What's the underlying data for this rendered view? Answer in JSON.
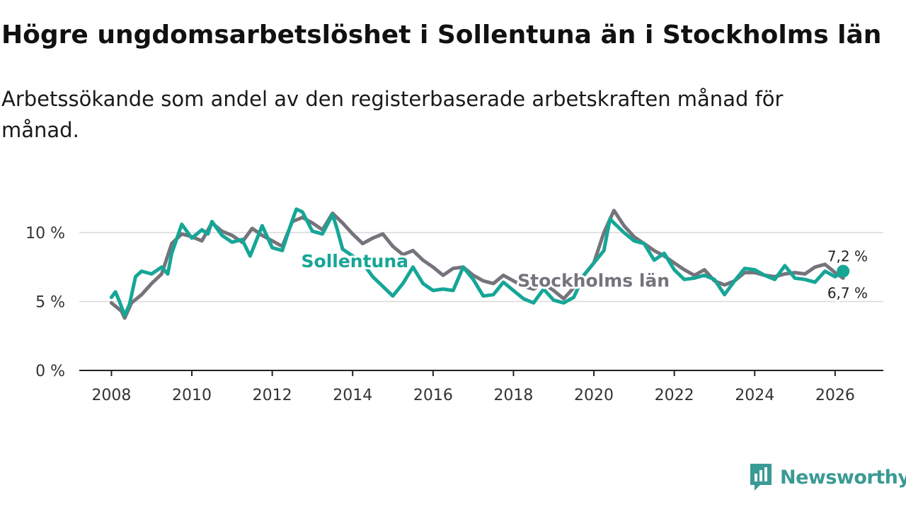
{
  "title": "Högre ungdomsarbetslöshet i Sollentuna än i Stockholms län",
  "subtitle": "Arbetssökande som andel av den registerbaserade arbetskraften månad för månad.",
  "brand": {
    "name": "Newsworthy",
    "icon": "newsworthy-logo-icon"
  },
  "colors": {
    "sollentuna": "#16a697",
    "stockholm": "#76737b",
    "grid": "#d9d9d9",
    "axis": "#222222"
  },
  "chart_data": {
    "type": "line",
    "title": "Högre ungdomsarbetslöshet i Sollentuna än i Stockholms län",
    "xlabel": "",
    "ylabel": "",
    "xlim": [
      2007.2,
      2027.2
    ],
    "ylim": [
      0,
      12
    ],
    "x_ticks": [
      2008,
      2010,
      2012,
      2014,
      2016,
      2018,
      2020,
      2022,
      2024,
      2026
    ],
    "x_tick_labels": [
      "2008",
      "2010",
      "2012",
      "2014",
      "2016",
      "2018",
      "2020",
      "2022",
      "2024",
      "2026"
    ],
    "y_ticks": [
      0,
      5,
      10
    ],
    "y_tick_labels": [
      "0 %",
      "5 %",
      "10 %"
    ],
    "grid": true,
    "series": [
      {
        "name": "Stockholms län",
        "label": "Stockholms län",
        "end_label": "6,7 %",
        "x": [
          2008.0,
          2008.25,
          2008.33,
          2008.5,
          2008.75,
          2009.0,
          2009.25,
          2009.5,
          2009.75,
          2010.0,
          2010.25,
          2010.5,
          2010.75,
          2011.0,
          2011.25,
          2011.5,
          2011.75,
          2012.0,
          2012.25,
          2012.5,
          2012.75,
          2013.0,
          2013.25,
          2013.5,
          2013.75,
          2014.0,
          2014.25,
          2014.5,
          2014.75,
          2015.0,
          2015.25,
          2015.5,
          2015.75,
          2016.0,
          2016.25,
          2016.5,
          2016.75,
          2017.0,
          2017.25,
          2017.5,
          2017.75,
          2018.0,
          2018.25,
          2018.5,
          2018.75,
          2019.0,
          2019.25,
          2019.5,
          2019.75,
          2020.0,
          2020.25,
          2020.5,
          2020.75,
          2021.0,
          2021.25,
          2021.5,
          2021.75,
          2022.0,
          2022.25,
          2022.5,
          2022.75,
          2023.0,
          2023.25,
          2023.5,
          2023.75,
          2024.0,
          2024.25,
          2024.5,
          2024.75,
          2025.0,
          2025.25,
          2025.5,
          2025.75,
          2026.0,
          2026.2
        ],
        "values": [
          4.9,
          4.3,
          3.8,
          4.9,
          5.5,
          6.3,
          7.0,
          9.2,
          9.9,
          9.7,
          9.4,
          10.7,
          10.1,
          9.8,
          9.3,
          10.3,
          9.8,
          9.4,
          9.0,
          10.8,
          11.1,
          10.7,
          10.2,
          11.4,
          10.7,
          9.9,
          9.2,
          9.6,
          9.9,
          9.0,
          8.4,
          8.7,
          8.0,
          7.5,
          6.9,
          7.4,
          7.5,
          6.9,
          6.5,
          6.3,
          6.9,
          6.5,
          6.1,
          5.9,
          6.3,
          5.8,
          5.2,
          6.0,
          6.9,
          7.8,
          10.0,
          11.6,
          10.5,
          9.7,
          9.2,
          8.7,
          8.3,
          7.8,
          7.3,
          6.9,
          7.3,
          6.5,
          6.2,
          6.5,
          7.1,
          7.1,
          6.9,
          6.8,
          7.0,
          7.1,
          7.0,
          7.5,
          7.7,
          7.1,
          6.7
        ]
      },
      {
        "name": "Sollentuna",
        "label": "Sollentuna",
        "end_label": "7,2 %",
        "x": [
          2008.0,
          2008.1,
          2008.2,
          2008.33,
          2008.45,
          2008.6,
          2008.75,
          2009.0,
          2009.25,
          2009.4,
          2009.5,
          2009.75,
          2010.0,
          2010.25,
          2010.4,
          2010.5,
          2010.75,
          2011.0,
          2011.25,
          2011.45,
          2011.75,
          2012.0,
          2012.25,
          2012.5,
          2012.6,
          2012.75,
          2013.0,
          2013.25,
          2013.5,
          2013.6,
          2013.75,
          2014.0,
          2014.25,
          2014.5,
          2014.75,
          2015.0,
          2015.25,
          2015.5,
          2015.75,
          2016.0,
          2016.25,
          2016.5,
          2016.75,
          2017.0,
          2017.25,
          2017.5,
          2017.75,
          2018.0,
          2018.25,
          2018.5,
          2018.75,
          2019.0,
          2019.25,
          2019.5,
          2019.75,
          2020.0,
          2020.25,
          2020.4,
          2020.5,
          2020.75,
          2021.0,
          2021.25,
          2021.5,
          2021.75,
          2022.0,
          2022.25,
          2022.5,
          2022.75,
          2023.0,
          2023.25,
          2023.5,
          2023.75,
          2024.0,
          2024.25,
          2024.5,
          2024.75,
          2025.0,
          2025.25,
          2025.5,
          2025.75,
          2026.0,
          2026.2
        ],
        "values": [
          5.3,
          5.7,
          5.0,
          4.0,
          4.8,
          6.8,
          7.2,
          7.0,
          7.5,
          7.0,
          8.5,
          10.6,
          9.6,
          10.2,
          9.9,
          10.8,
          9.8,
          9.3,
          9.5,
          8.3,
          10.5,
          8.9,
          8.7,
          10.9,
          11.7,
          11.5,
          10.1,
          9.9,
          11.3,
          10.4,
          8.8,
          8.3,
          7.8,
          6.8,
          6.1,
          5.4,
          6.3,
          7.5,
          6.3,
          5.8,
          5.9,
          5.8,
          7.5,
          6.6,
          5.4,
          5.5,
          6.4,
          5.8,
          5.2,
          4.9,
          5.9,
          5.1,
          4.9,
          5.3,
          6.9,
          7.8,
          8.7,
          11.0,
          10.7,
          10.0,
          9.4,
          9.2,
          8.0,
          8.5,
          7.3,
          6.6,
          6.7,
          6.9,
          6.6,
          5.5,
          6.5,
          7.4,
          7.3,
          6.9,
          6.6,
          7.6,
          6.7,
          6.6,
          6.4,
          7.2,
          6.8,
          7.2
        ]
      }
    ]
  }
}
